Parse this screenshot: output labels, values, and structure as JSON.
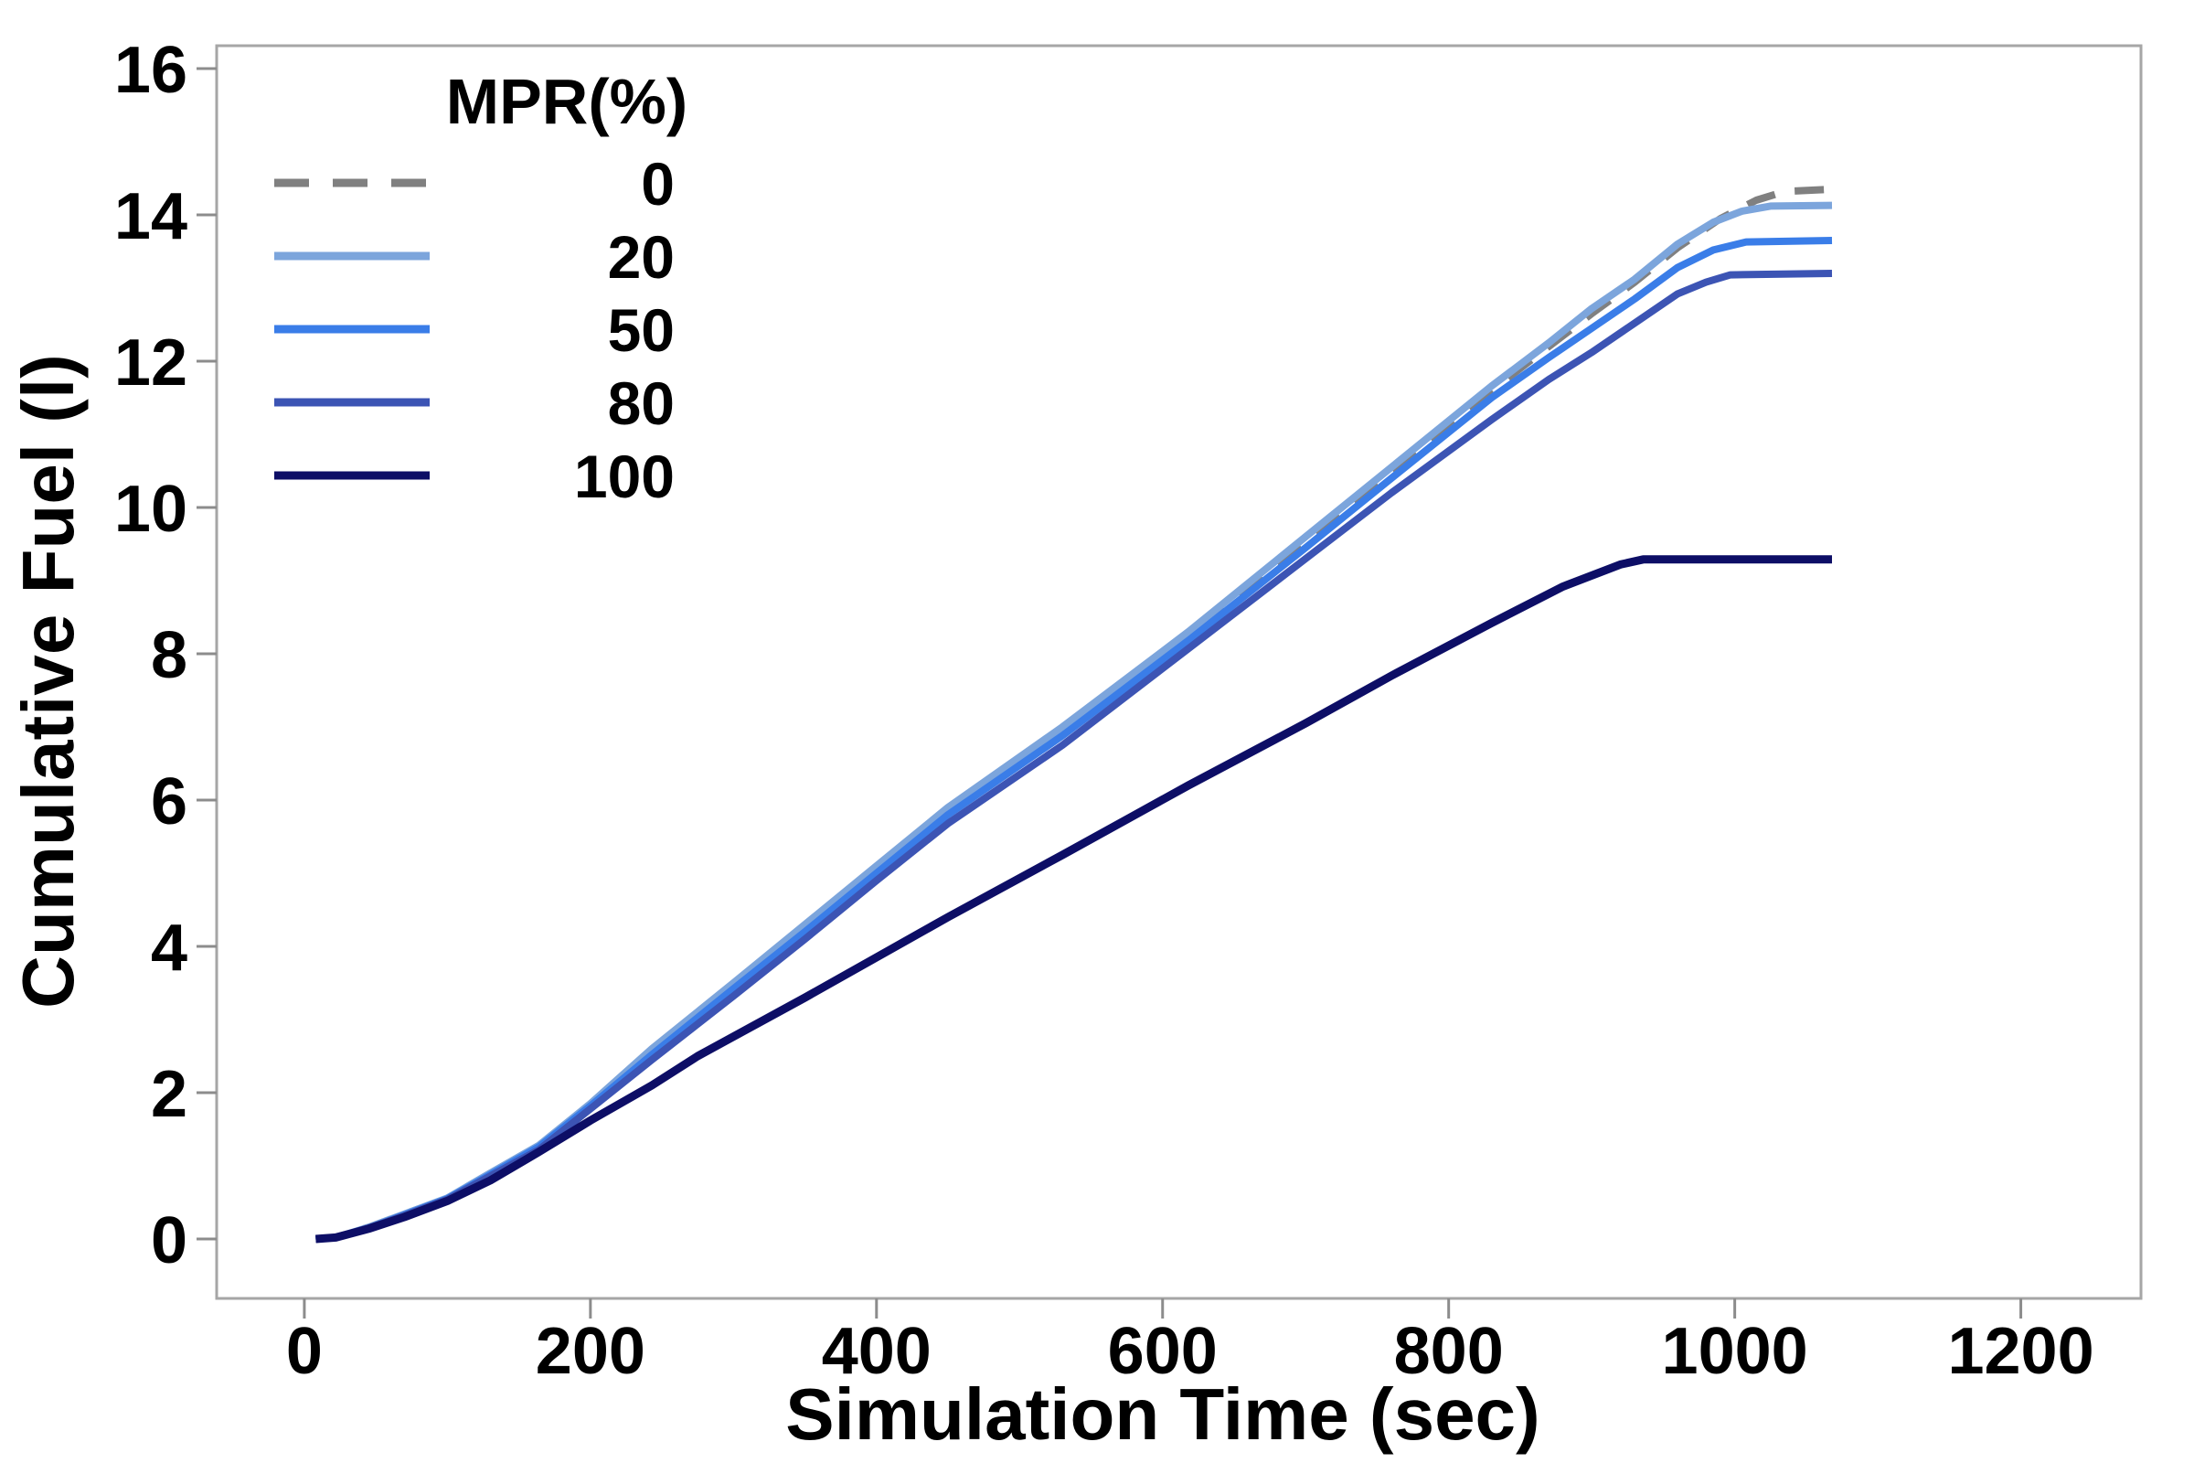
{
  "page": {
    "background": "#ffffff"
  },
  "colors": {
    "axis_line": "#a6a6a6",
    "tick_mark": "#8c8c8c",
    "text": "#000000"
  },
  "chart_data": {
    "type": "line",
    "title": "",
    "xlabel": "Simulation Time (sec)",
    "ylabel": "Cumulative Fuel (l)",
    "x_ticks": [
      0,
      200,
      400,
      600,
      800,
      1000,
      1200
    ],
    "y_ticks": [
      0,
      2,
      4,
      6,
      8,
      10,
      12,
      14,
      16
    ],
    "xlim": [
      -61.3,
      1284.0
    ],
    "ylim": [
      -0.8125,
      16.3125
    ],
    "grid": false,
    "legend": {
      "title": "MPR(%)",
      "position": "top-left-inside"
    },
    "series": [
      {
        "name": "0",
        "color": "#808080",
        "dashed": true,
        "points": [
          [
            8,
            0
          ],
          [
            22,
            0.02
          ],
          [
            45,
            0.16
          ],
          [
            70,
            0.34
          ],
          [
            100,
            0.55
          ],
          [
            130,
            0.88
          ],
          [
            164,
            1.25
          ],
          [
            200,
            1.82
          ],
          [
            243,
            2.55
          ],
          [
            300,
            3.45
          ],
          [
            350,
            4.25
          ],
          [
            400,
            5.05
          ],
          [
            450,
            5.85
          ],
          [
            530,
            6.95
          ],
          [
            618,
            8.26
          ],
          [
            700,
            9.55
          ],
          [
            760,
            10.5
          ],
          [
            830,
            11.6
          ],
          [
            870,
            12.2
          ],
          [
            900,
            12.65
          ],
          [
            930,
            13.08
          ],
          [
            960,
            13.55
          ],
          [
            990,
            13.95
          ],
          [
            1015,
            14.2
          ],
          [
            1035,
            14.32
          ],
          [
            1068,
            14.35
          ]
        ]
      },
      {
        "name": "20",
        "color": "#7ca5dc",
        "dashed": false,
        "points": [
          [
            8,
            0
          ],
          [
            22,
            0.02
          ],
          [
            45,
            0.16
          ],
          [
            70,
            0.34
          ],
          [
            100,
            0.56
          ],
          [
            130,
            0.9
          ],
          [
            164,
            1.28
          ],
          [
            200,
            1.85
          ],
          [
            243,
            2.6
          ],
          [
            300,
            3.5
          ],
          [
            350,
            4.3
          ],
          [
            400,
            5.1
          ],
          [
            450,
            5.9
          ],
          [
            530,
            7.0
          ],
          [
            618,
            8.3
          ],
          [
            700,
            9.6
          ],
          [
            760,
            10.55
          ],
          [
            830,
            11.66
          ],
          [
            870,
            12.25
          ],
          [
            900,
            12.72
          ],
          [
            930,
            13.12
          ],
          [
            960,
            13.6
          ],
          [
            985,
            13.9
          ],
          [
            1005,
            14.05
          ],
          [
            1025,
            14.12
          ],
          [
            1068,
            14.13
          ]
        ]
      },
      {
        "name": "50",
        "color": "#3a7de8",
        "dashed": false,
        "points": [
          [
            8,
            0
          ],
          [
            22,
            0.02
          ],
          [
            45,
            0.15
          ],
          [
            70,
            0.33
          ],
          [
            100,
            0.55
          ],
          [
            130,
            0.88
          ],
          [
            164,
            1.26
          ],
          [
            200,
            1.82
          ],
          [
            243,
            2.52
          ],
          [
            300,
            3.42
          ],
          [
            350,
            4.2
          ],
          [
            400,
            5.0
          ],
          [
            450,
            5.8
          ],
          [
            530,
            6.88
          ],
          [
            618,
            8.18
          ],
          [
            700,
            9.45
          ],
          [
            760,
            10.4
          ],
          [
            830,
            11.5
          ],
          [
            870,
            12.05
          ],
          [
            900,
            12.45
          ],
          [
            930,
            12.85
          ],
          [
            960,
            13.28
          ],
          [
            985,
            13.52
          ],
          [
            1008,
            13.63
          ],
          [
            1068,
            13.65
          ]
        ]
      },
      {
        "name": "80",
        "color": "#3c54b4",
        "dashed": false,
        "points": [
          [
            8,
            0
          ],
          [
            22,
            0.02
          ],
          [
            45,
            0.15
          ],
          [
            70,
            0.32
          ],
          [
            100,
            0.54
          ],
          [
            130,
            0.86
          ],
          [
            164,
            1.22
          ],
          [
            200,
            1.78
          ],
          [
            243,
            2.45
          ],
          [
            300,
            3.32
          ],
          [
            350,
            4.1
          ],
          [
            400,
            4.9
          ],
          [
            450,
            5.68
          ],
          [
            530,
            6.75
          ],
          [
            618,
            8.07
          ],
          [
            700,
            9.3
          ],
          [
            760,
            10.2
          ],
          [
            830,
            11.2
          ],
          [
            870,
            11.75
          ],
          [
            900,
            12.12
          ],
          [
            930,
            12.52
          ],
          [
            960,
            12.92
          ],
          [
            980,
            13.08
          ],
          [
            997,
            13.18
          ],
          [
            1068,
            13.2
          ]
        ]
      },
      {
        "name": "100",
        "color": "#0d0e66",
        "dashed": false,
        "points": [
          [
            8,
            0
          ],
          [
            22,
            0.02
          ],
          [
            45,
            0.14
          ],
          [
            70,
            0.3
          ],
          [
            100,
            0.52
          ],
          [
            130,
            0.8
          ],
          [
            164,
            1.19
          ],
          [
            200,
            1.62
          ],
          [
            243,
            2.1
          ],
          [
            275,
            2.5
          ],
          [
            350,
            3.3
          ],
          [
            400,
            3.85
          ],
          [
            450,
            4.4
          ],
          [
            530,
            5.25
          ],
          [
            618,
            6.2
          ],
          [
            700,
            7.05
          ],
          [
            760,
            7.7
          ],
          [
            830,
            8.42
          ],
          [
            880,
            8.92
          ],
          [
            920,
            9.22
          ],
          [
            936,
            9.29
          ],
          [
            1068,
            9.29
          ]
        ]
      }
    ]
  }
}
